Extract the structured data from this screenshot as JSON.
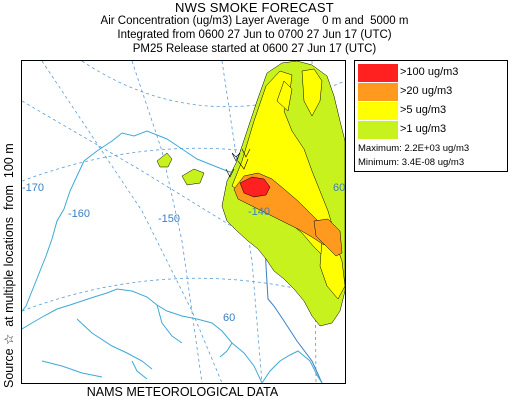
{
  "header": {
    "title": "NWS SMOKE FORECAST",
    "line1": "Air Concentration (ug/m3) Layer Average    0 m and  5000 m",
    "line2": "Integrated from 0600 27 Jun to 0700 27 Jun 17 (UTC)",
    "line3": "PM25 Release started at 0600 27 Jun 17 (UTC)"
  },
  "side_label": "Source ☆  at multiple locations  from  100 m",
  "bottom_label": "NAMS METEOROLOGICAL DATA",
  "legend": {
    "items": [
      {
        "label": ">100 ug/m3",
        "color": "#ff2020"
      },
      {
        "label": ">20 ug/m3",
        "color": "#ff9a1f"
      },
      {
        "label": ">5 ug/m3",
        "color": "#ffff00"
      },
      {
        "label": ">1 ug/m3",
        "color": "#c8f21e"
      }
    ],
    "maximum": "Maximum: 2.2E+03 ug/m3",
    "minimum": "Minimum: 3.4E-08 ug/m3"
  },
  "map": {
    "grid_labels": {
      "lon_170": "-170",
      "lon_160": "-160",
      "lon_150": "-150",
      "lon_140": "-140",
      "lat_60": "60",
      "lat_edge": "60"
    },
    "colors": {
      "coast": "#3fa9d6",
      "grid": "#5b9bd5",
      "border": "#3a7fc4",
      "contour": "#000000"
    }
  }
}
